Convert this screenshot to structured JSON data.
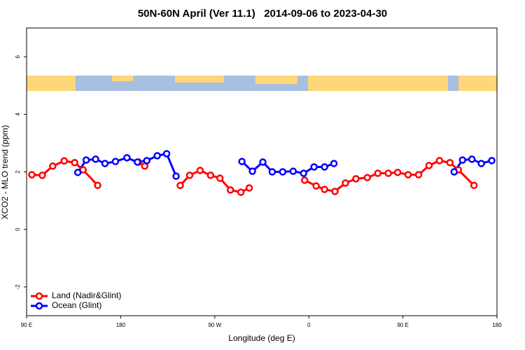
{
  "chart_data": {
    "type": "line",
    "title": "50N-60N April (Ver 11.1)   2014-09-06 to 2023-04-30",
    "x_label": "Longitude (deg E)",
    "y_label": "XCO2 - MLO trend (ppm)",
    "xlim": [
      90,
      540
    ],
    "xticks": [
      {
        "value": 90,
        "label": "90 E"
      },
      {
        "value": 180,
        "label": "180"
      },
      {
        "value": 270,
        "label": "90 W"
      },
      {
        "value": 360,
        "label": "0"
      },
      {
        "value": 450,
        "label": "90 E"
      },
      {
        "value": 540,
        "label": "180"
      }
    ],
    "ylim": [
      -3,
      7
    ],
    "yticks": [
      -2,
      0,
      2,
      4,
      6
    ],
    "legend": "bottom-left",
    "series": [
      {
        "name": "Land (Nadir&Glint)",
        "color": "#ff0000",
        "x": [
          95,
          105,
          115,
          126,
          136,
          144,
          158,
          null,
          197,
          203,
          null,
          237,
          246,
          256,
          266,
          275,
          285,
          295,
          303,
          null,
          356,
          367,
          375,
          385,
          395,
          405,
          416,
          426,
          436,
          445,
          455,
          465,
          475,
          485,
          495,
          503,
          518
        ],
        "values": [
          1.9,
          1.88,
          2.2,
          2.38,
          2.32,
          2.07,
          1.53,
          null,
          2.34,
          2.2,
          null,
          1.53,
          1.88,
          2.05,
          1.88,
          1.78,
          1.37,
          1.29,
          1.44,
          null,
          1.71,
          1.51,
          1.39,
          1.32,
          1.61,
          1.76,
          1.8,
          1.95,
          1.95,
          1.98,
          1.9,
          1.9,
          2.22,
          2.39,
          2.32,
          2.07,
          1.53
        ]
      },
      {
        "name": "Ocean (Glint)",
        "color": "#0000ff",
        "x": [
          139,
          147,
          156,
          165,
          175,
          186,
          196,
          205,
          215,
          224,
          233,
          null,
          296,
          306,
          316,
          325,
          335,
          345,
          355,
          365,
          375,
          384,
          null,
          499,
          507,
          516,
          525,
          535
        ],
        "values": [
          1.98,
          2.41,
          2.44,
          2.29,
          2.36,
          2.49,
          2.34,
          2.39,
          2.56,
          2.63,
          1.85,
          null,
          2.36,
          2.02,
          2.34,
          2.0,
          2.0,
          2.02,
          1.95,
          2.17,
          2.17,
          2.29,
          null,
          2.0,
          2.41,
          2.44,
          2.29,
          2.39
        ]
      }
    ]
  }
}
